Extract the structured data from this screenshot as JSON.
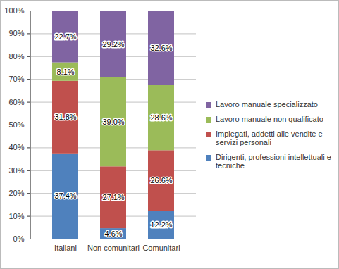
{
  "chart_data": {
    "type": "bar",
    "stacked": true,
    "categories": [
      "Italiani",
      "Non comunitari",
      "Comunitari"
    ],
    "series": [
      {
        "name": "Dirigenti, professioni intellettuali e tecniche",
        "color": "#4f81bd",
        "values": [
          37.4,
          4.6,
          12.2
        ],
        "value_labels": [
          "37.4%",
          "4.6%",
          "12.2%"
        ]
      },
      {
        "name": "Impiegati, addetti alle vendite e servizi personali",
        "color": "#c0504d",
        "values": [
          31.8,
          27.1,
          26.6
        ],
        "value_labels": [
          "31.8%",
          "27.1%",
          "26.6%"
        ]
      },
      {
        "name": "Lavoro manuale non qualificato",
        "color": "#9bbb59",
        "values": [
          8.1,
          39.0,
          28.6
        ],
        "value_labels": [
          "8.1%",
          "39.0%",
          "28.6%"
        ]
      },
      {
        "name": "Lavoro manuale specializzato",
        "color": "#8064a2",
        "values": [
          22.7,
          29.2,
          32.6
        ],
        "value_labels": [
          "22.7%",
          "29.2%",
          "32.6%"
        ]
      }
    ],
    "ylim": [
      0,
      100
    ],
    "yticks": [
      {
        "value": 0,
        "label": "0%"
      },
      {
        "value": 10,
        "label": "10%"
      },
      {
        "value": 20,
        "label": "20%"
      },
      {
        "value": 30,
        "label": "30%"
      },
      {
        "value": 40,
        "label": "40%"
      },
      {
        "value": 50,
        "label": "50%"
      },
      {
        "value": 60,
        "label": "60%"
      },
      {
        "value": 70,
        "label": "70%"
      },
      {
        "value": 80,
        "label": "80%"
      },
      {
        "value": 90,
        "label": "90%"
      },
      {
        "value": 100,
        "label": "100%"
      }
    ],
    "grid": true,
    "legend": "right",
    "data_labels": true
  }
}
